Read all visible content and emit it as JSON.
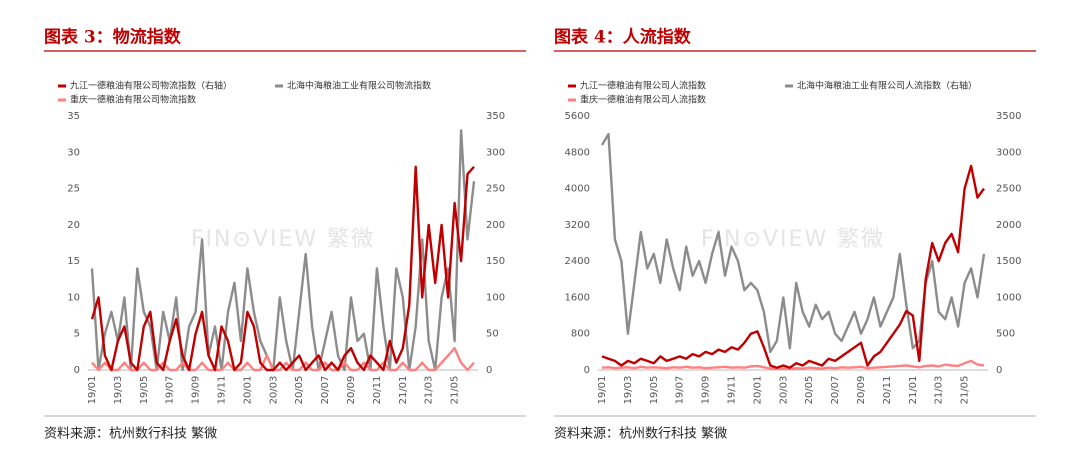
{
  "chart_data": [
    {
      "type": "line",
      "title": "图表 3：物流指数",
      "source": "资料来源：杭州数行科技 繁微",
      "watermark": "FIN⊙VIEW 繁微",
      "categories": [
        "19/01",
        null,
        null,
        null,
        "19/03",
        null,
        null,
        null,
        "19/05",
        null,
        null,
        null,
        "19/07",
        null,
        null,
        null,
        "19/09",
        null,
        null,
        null,
        "19/11",
        null,
        null,
        null,
        "20/01",
        null,
        null,
        null,
        "20/03",
        null,
        null,
        null,
        "20/05",
        null,
        null,
        null,
        "20/07",
        null,
        null,
        null,
        "20/09",
        null,
        null,
        null,
        "20/11",
        null,
        null,
        null,
        "21/01",
        null,
        null,
        null,
        "21/03",
        null,
        null,
        null,
        "21/05",
        null,
        null,
        null
      ],
      "ylim": [
        0,
        35
      ],
      "yticks": [
        0,
        5,
        10,
        15,
        20,
        25,
        30,
        35
      ],
      "y2lim": [
        0,
        350
      ],
      "y2ticks": [
        0,
        50,
        100,
        150,
        200,
        250,
        300,
        350
      ],
      "series": [
        {
          "name": "九江一德粮油有限公司物流指数（右轴）",
          "color": "#c00000",
          "axis": "y2",
          "values": [
            70,
            100,
            20,
            0,
            40,
            60,
            10,
            0,
            60,
            80,
            10,
            0,
            40,
            70,
            20,
            0,
            50,
            80,
            20,
            0,
            60,
            40,
            0,
            10,
            80,
            60,
            10,
            0,
            0,
            10,
            0,
            10,
            20,
            0,
            10,
            20,
            0,
            10,
            0,
            20,
            30,
            10,
            0,
            20,
            10,
            0,
            40,
            10,
            30,
            90,
            280,
            100,
            200,
            120,
            200,
            100,
            230,
            150,
            270,
            280
          ]
        },
        {
          "name": "北海中海粮油工业有限公司物流指数",
          "color": "#8c8c8c",
          "values": [
            14,
            0,
            5,
            8,
            4,
            10,
            0,
            14,
            8,
            6,
            0,
            8,
            4,
            10,
            0,
            6,
            8,
            18,
            2,
            6,
            0,
            8,
            12,
            4,
            14,
            8,
            4,
            2,
            0,
            10,
            4,
            0,
            8,
            16,
            6,
            0,
            4,
            8,
            2,
            0,
            10,
            4,
            5,
            0,
            14,
            6,
            0,
            14,
            10,
            0,
            6,
            18,
            4,
            0,
            10,
            14,
            4,
            33,
            18,
            26
          ]
        },
        {
          "name": "重庆一德粮油有限公司物流指数",
          "color": "#ff8080",
          "values": [
            1,
            0,
            1,
            0,
            0,
            1,
            0,
            0,
            1,
            0,
            0,
            1,
            0,
            0,
            1,
            0,
            0,
            1,
            0,
            0,
            0,
            1,
            0,
            0,
            1,
            0,
            0,
            2,
            0,
            0,
            1,
            0,
            0,
            1,
            0,
            0,
            1,
            0,
            0,
            1,
            0,
            0,
            1,
            0,
            0,
            1,
            0,
            0,
            1,
            0,
            0,
            1,
            0,
            0,
            1,
            2,
            3,
            1,
            0,
            1
          ]
        }
      ]
    },
    {
      "type": "line",
      "title": "图表 4：人流指数",
      "source": "资料来源：杭州数行科技 繁微",
      "watermark": "FIN⊙VIEW 繁微",
      "categories": [
        "19/01",
        null,
        null,
        null,
        "19/03",
        null,
        null,
        null,
        "19/05",
        null,
        null,
        null,
        "19/07",
        null,
        null,
        null,
        "19/09",
        null,
        null,
        null,
        "19/11",
        null,
        null,
        null,
        "20/01",
        null,
        null,
        null,
        "20/03",
        null,
        null,
        null,
        "20/05",
        null,
        null,
        null,
        "20/07",
        null,
        null,
        null,
        "20/09",
        null,
        null,
        null,
        "20/11",
        null,
        null,
        null,
        "21/01",
        null,
        null,
        null,
        "21/03",
        null,
        null,
        null,
        "21/05",
        null,
        null,
        null
      ],
      "ylim": [
        0,
        5600
      ],
      "yticks": [
        0,
        800,
        1600,
        2400,
        3200,
        4000,
        4800,
        5600
      ],
      "y2lim": [
        0,
        3500
      ],
      "y2ticks": [
        0,
        500,
        1000,
        1500,
        2000,
        2500,
        3000,
        3500
      ],
      "series": [
        {
          "name": "九江一德粮油有限公司人流指数",
          "color": "#c00000",
          "values": [
            300,
            250,
            200,
            100,
            200,
            150,
            250,
            200,
            150,
            300,
            200,
            250,
            300,
            250,
            350,
            300,
            400,
            350,
            450,
            400,
            500,
            450,
            600,
            800,
            850,
            500,
            100,
            50,
            100,
            50,
            150,
            100,
            200,
            150,
            100,
            250,
            200,
            300,
            400,
            500,
            600,
            100,
            300,
            400,
            600,
            800,
            1000,
            1300,
            1200,
            200,
            2000,
            2800,
            2400,
            2800,
            3000,
            2600,
            4000,
            4500,
            3800,
            4000
          ]
        },
        {
          "name": "北海中海粮油工业有限公司人流指数（右轴）",
          "color": "#8c8c8c",
          "axis": "y2",
          "values": [
            3100,
            3250,
            1800,
            1500,
            500,
            1200,
            1900,
            1400,
            1600,
            1200,
            1800,
            1400,
            1100,
            1700,
            1300,
            1500,
            1200,
            1600,
            1900,
            1300,
            1700,
            1500,
            1100,
            1200,
            1100,
            800,
            250,
            400,
            1000,
            300,
            1200,
            800,
            600,
            900,
            700,
            800,
            500,
            400,
            600,
            800,
            500,
            700,
            1000,
            600,
            800,
            1000,
            1600,
            900,
            300,
            400,
            1200,
            1500,
            800,
            700,
            1000,
            600,
            1200,
            1400,
            1000,
            1600
          ]
        },
        {
          "name": "重庆一德粮油有限公司人流指数",
          "color": "#ff8080",
          "values": [
            50,
            60,
            40,
            50,
            60,
            40,
            70,
            50,
            60,
            50,
            40,
            60,
            50,
            70,
            50,
            60,
            40,
            50,
            60,
            70,
            50,
            60,
            50,
            80,
            90,
            60,
            30,
            20,
            30,
            20,
            40,
            30,
            50,
            40,
            30,
            50,
            40,
            60,
            50,
            60,
            70,
            40,
            50,
            60,
            70,
            80,
            90,
            100,
            80,
            60,
            90,
            100,
            80,
            120,
            100,
            90,
            150,
            200,
            120,
            100
          ]
        }
      ]
    }
  ]
}
